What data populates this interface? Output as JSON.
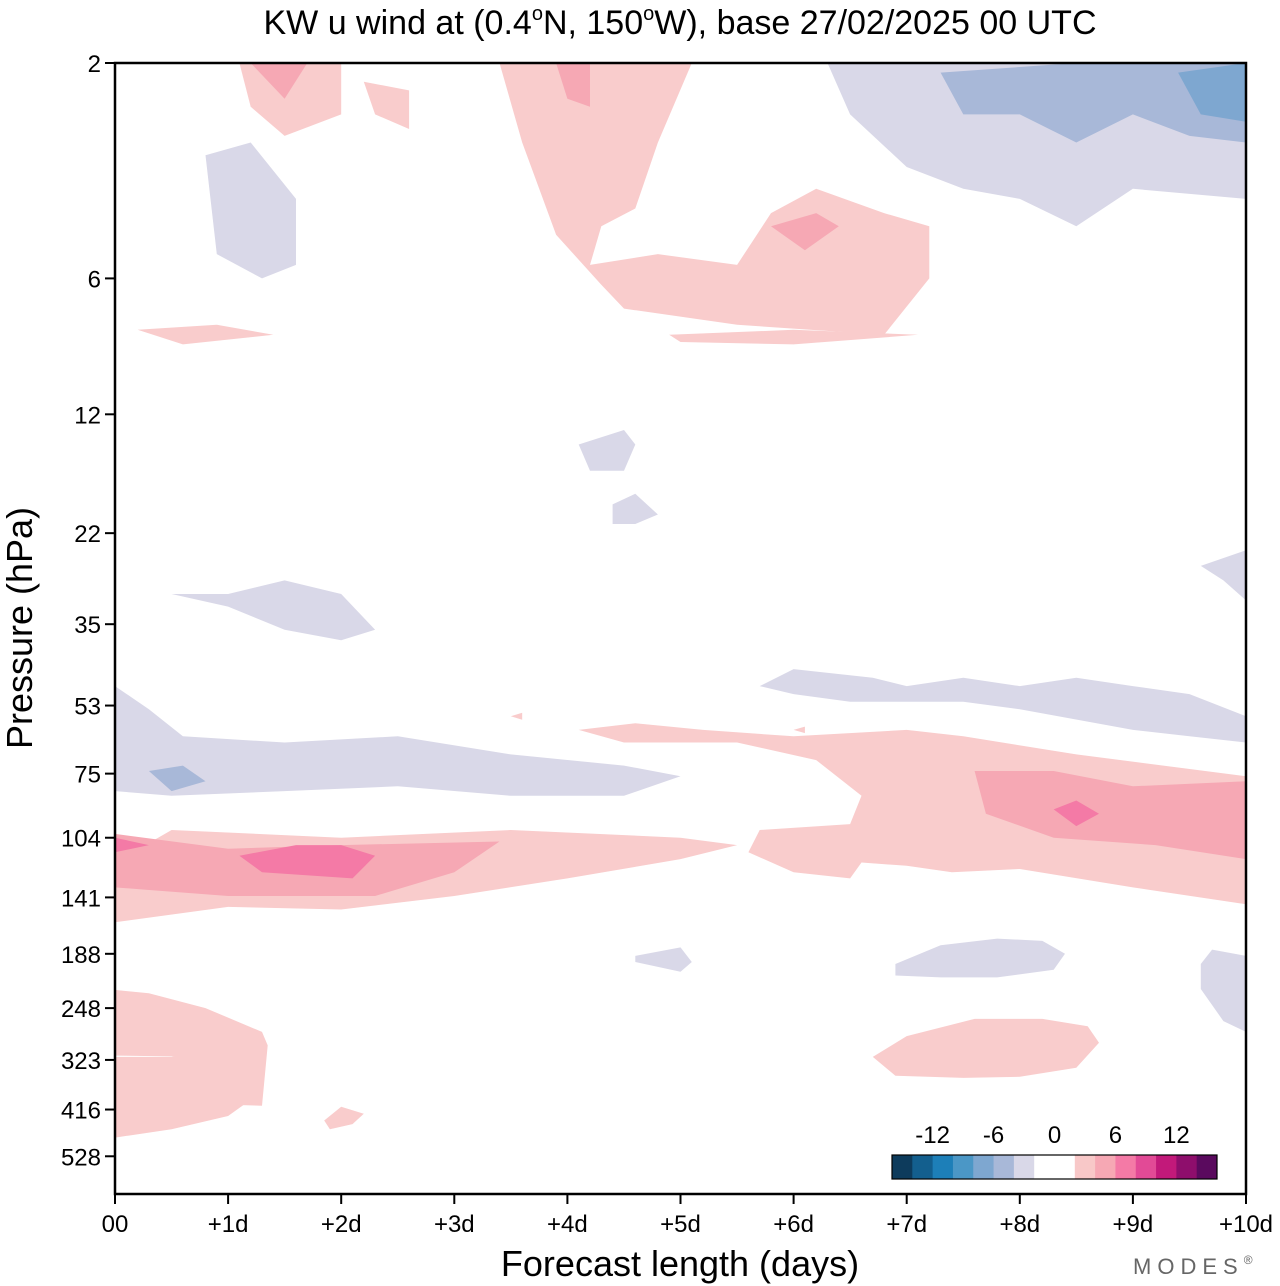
{
  "chart_data": {
    "type": "heatmap",
    "title": "KW u wind at (0.4°N, 150°W),  base 27/02/2025  00 UTC",
    "title_parts": {
      "prefix": "KW u wind at (0.4",
      "deg1": "o",
      "mid": "N, 150",
      "deg2": "o",
      "suffix": "W),  base 27/02/2025  00 UTC"
    },
    "xlabel": "Forecast length (days)",
    "ylabel": "Pressure (hPa)",
    "x_ticks": [
      "00",
      "+1d",
      "+2d",
      "+3d",
      "+4d",
      "+5d",
      "+6d",
      "+7d",
      "+8d",
      "+9d",
      "+10d"
    ],
    "x_range": [
      0,
      10
    ],
    "y_ticks": [
      "2",
      "6",
      "12",
      "22",
      "35",
      "53",
      "75",
      "104",
      "141",
      "188",
      "248",
      "323",
      "416",
      "528"
    ],
    "y_scale": "log",
    "y_range": [
      2,
      640
    ],
    "colorbar": {
      "tick_labels": [
        "-12",
        "-6",
        "0",
        "6",
        "12"
      ],
      "colors": [
        "#0d3b5c",
        "#135f8e",
        "#1d7fb8",
        "#4b97c6",
        "#7ea7d0",
        "#a8b8d8",
        "#d9d8e8",
        "#ffffff",
        "#ffffff",
        "#f8c8c8",
        "#f6a8b4",
        "#f47aa6",
        "#e24a96",
        "#c2197a",
        "#8e0e6c",
        "#5a0a5e"
      ]
    },
    "levels": {
      "neg_weak": "#d9d8e8",
      "neg_mid": "#a8b8d8",
      "neg_strong": "#7ea7d0",
      "pos_weak": "#f9cccc",
      "pos_mid": "#f6a8b4",
      "pos_strong": "#f47aa6"
    },
    "regions": [
      {
        "level": "pos_weak",
        "points": [
          [
            0,
            118
          ],
          [
            0.5,
            100
          ],
          [
            2,
            104
          ],
          [
            3.5,
            100
          ],
          [
            5,
            104
          ],
          [
            5.5,
            108
          ],
          [
            5,
            116
          ],
          [
            4,
            128
          ],
          [
            3,
            140
          ],
          [
            2,
            150
          ],
          [
            1,
            148
          ],
          [
            0,
            160
          ]
        ]
      },
      {
        "level": "pos_mid",
        "points": [
          [
            0,
            102
          ],
          [
            1,
            110
          ],
          [
            2,
            108
          ],
          [
            3.4,
            106
          ],
          [
            3,
            124
          ],
          [
            2.3,
            140
          ],
          [
            1,
            140
          ],
          [
            0,
            134
          ]
        ]
      },
      {
        "level": "pos_strong",
        "points": [
          [
            0,
            104
          ],
          [
            0.3,
            108
          ],
          [
            0,
            112
          ]
        ]
      },
      {
        "level": "pos_strong",
        "points": [
          [
            1.1,
            114
          ],
          [
            1.6,
            108
          ],
          [
            2.0,
            108
          ],
          [
            2.3,
            114
          ],
          [
            2.1,
            128
          ],
          [
            1.3,
            124
          ]
        ]
      },
      {
        "level": "pos_weak",
        "points": [
          [
            4.1,
            60
          ],
          [
            4.6,
            58
          ],
          [
            5.2,
            60
          ],
          [
            6,
            62
          ],
          [
            7,
            60
          ],
          [
            7.5,
            62
          ],
          [
            8.5,
            68
          ],
          [
            10,
            76
          ],
          [
            10,
            146
          ],
          [
            9,
            134
          ],
          [
            8,
            122
          ],
          [
            7.4,
            124
          ],
          [
            7,
            120
          ],
          [
            6.6,
            118
          ],
          [
            6.5,
            128
          ],
          [
            6,
            124
          ],
          [
            5.6,
            112
          ],
          [
            5.7,
            100
          ],
          [
            6.5,
            97
          ],
          [
            6.6,
            84
          ],
          [
            6.2,
            70
          ],
          [
            5.5,
            64
          ],
          [
            4.5,
            64
          ]
        ]
      },
      {
        "level": "pos_mid",
        "points": [
          [
            7.6,
            74
          ],
          [
            8.3,
            74
          ],
          [
            9,
            80
          ],
          [
            10,
            78
          ],
          [
            10,
            116
          ],
          [
            9.2,
            108
          ],
          [
            8.3,
            104
          ],
          [
            7.7,
            92
          ]
        ]
      },
      {
        "level": "pos_strong",
        "points": [
          [
            8.3,
            90
          ],
          [
            8.5,
            86
          ],
          [
            8.7,
            92
          ],
          [
            8.5,
            98
          ]
        ]
      },
      {
        "level": "neg_weak",
        "points": [
          [
            0,
            48
          ],
          [
            0.3,
            54
          ],
          [
            0.6,
            62
          ],
          [
            1.5,
            64
          ],
          [
            2.5,
            62
          ],
          [
            3.5,
            68
          ],
          [
            4.5,
            72
          ],
          [
            5,
            76
          ],
          [
            4.5,
            84
          ],
          [
            3.5,
            84
          ],
          [
            2.5,
            80
          ],
          [
            1.5,
            82
          ],
          [
            0.5,
            84
          ],
          [
            0,
            82
          ]
        ]
      },
      {
        "level": "neg_mid",
        "points": [
          [
            0.3,
            74
          ],
          [
            0.6,
            72
          ],
          [
            0.8,
            78
          ],
          [
            0.5,
            82
          ]
        ]
      },
      {
        "level": "neg_weak",
        "points": [
          [
            0.5,
            30
          ],
          [
            1,
            30
          ],
          [
            1.5,
            28
          ],
          [
            2,
            30
          ],
          [
            2.3,
            36
          ],
          [
            2,
            38
          ],
          [
            1.5,
            36
          ],
          [
            1,
            32
          ]
        ]
      },
      {
        "level": "neg_weak",
        "points": [
          [
            5.7,
            48
          ],
          [
            6,
            44
          ],
          [
            6.7,
            46
          ],
          [
            7,
            48
          ],
          [
            7.5,
            46
          ],
          [
            8,
            48
          ],
          [
            8.5,
            46
          ],
          [
            9,
            48
          ],
          [
            9.5,
            50
          ],
          [
            10,
            56
          ],
          [
            10,
            64
          ],
          [
            9.5,
            62
          ],
          [
            9,
            60
          ],
          [
            8,
            54
          ],
          [
            7.5,
            52
          ],
          [
            7,
            52
          ],
          [
            6.5,
            52
          ],
          [
            6,
            50
          ]
        ]
      },
      {
        "level": "neg_weak",
        "points": [
          [
            6.9,
            198
          ],
          [
            7.3,
            180
          ],
          [
            7.8,
            174
          ],
          [
            8.2,
            176
          ],
          [
            8.4,
            188
          ],
          [
            8.3,
            204
          ],
          [
            7.8,
            212
          ],
          [
            7.3,
            212
          ],
          [
            6.9,
            210
          ]
        ]
      },
      {
        "level": "neg_weak",
        "points": [
          [
            4.6,
            190
          ],
          [
            5,
            182
          ],
          [
            5.1,
            196
          ],
          [
            5,
            206
          ],
          [
            4.6,
            196
          ]
        ]
      },
      {
        "level": "neg_weak",
        "points": [
          [
            9.6,
            198
          ],
          [
            9.7,
            184
          ],
          [
            10,
            190
          ],
          [
            10,
            280
          ],
          [
            9.8,
            265
          ],
          [
            9.6,
            225
          ]
        ]
      },
      {
        "level": "neg_weak",
        "points": [
          [
            9.6,
            26
          ],
          [
            10,
            24
          ],
          [
            10,
            31
          ],
          [
            9.8,
            28
          ]
        ]
      },
      {
        "level": "neg_weak",
        "points": [
          [
            4.1,
            14
          ],
          [
            4.5,
            13
          ],
          [
            4.6,
            14
          ],
          [
            4.5,
            16
          ],
          [
            4.2,
            16
          ]
        ]
      },
      {
        "level": "neg_weak",
        "points": [
          [
            4.4,
            19
          ],
          [
            4.6,
            18
          ],
          [
            4.8,
            20
          ],
          [
            4.6,
            21
          ],
          [
            4.4,
            21
          ]
        ]
      },
      {
        "level": "neg_weak",
        "points": [
          [
            0.8,
            3.2
          ],
          [
            1.2,
            3.0
          ],
          [
            1.6,
            4.0
          ],
          [
            1.6,
            5.6
          ],
          [
            1.3,
            6.0
          ],
          [
            0.9,
            5.3
          ]
        ]
      },
      {
        "level": "neg_weak",
        "points": [
          [
            6.3,
            2
          ],
          [
            7.5,
            2
          ],
          [
            10,
            2
          ],
          [
            10,
            4.0
          ],
          [
            9,
            3.8
          ],
          [
            8.5,
            4.6
          ],
          [
            8,
            4.0
          ],
          [
            7.5,
            3.8
          ],
          [
            7,
            3.4
          ],
          [
            6.5,
            2.6
          ]
        ]
      },
      {
        "level": "neg_mid",
        "points": [
          [
            7.3,
            2.1
          ],
          [
            8.5,
            2.0
          ],
          [
            10,
            2.0
          ],
          [
            10,
            3.0
          ],
          [
            9.5,
            2.9
          ],
          [
            9,
            2.6
          ],
          [
            8.5,
            3.0
          ],
          [
            8,
            2.6
          ],
          [
            7.5,
            2.6
          ]
        ]
      },
      {
        "level": "neg_strong",
        "points": [
          [
            9.4,
            2.1
          ],
          [
            10,
            2.0
          ],
          [
            10,
            2.7
          ],
          [
            9.6,
            2.6
          ]
        ]
      },
      {
        "level": "pos_weak",
        "points": [
          [
            1.1,
            2
          ],
          [
            2.0,
            2
          ],
          [
            2.0,
            2.6
          ],
          [
            1.5,
            2.9
          ],
          [
            1.2,
            2.5
          ]
        ]
      },
      {
        "level": "pos_mid",
        "points": [
          [
            1.2,
            2.0
          ],
          [
            1.7,
            2.0
          ],
          [
            1.5,
            2.4
          ]
        ]
      },
      {
        "level": "pos_weak",
        "points": [
          [
            3.4,
            2
          ],
          [
            5.1,
            2
          ],
          [
            4.8,
            3.0
          ],
          [
            4.6,
            4.2
          ],
          [
            4.3,
            4.6
          ],
          [
            4.2,
            5.6
          ],
          [
            4.8,
            5.3
          ],
          [
            5.5,
            5.6
          ],
          [
            5.8,
            4.3
          ],
          [
            6.2,
            3.8
          ],
          [
            6.8,
            4.3
          ],
          [
            7.2,
            4.6
          ],
          [
            7.2,
            6.0
          ],
          [
            6.8,
            8.0
          ],
          [
            5.5,
            7.6
          ],
          [
            4.5,
            7.0
          ],
          [
            4.3,
            6.2
          ],
          [
            3.9,
            4.8
          ],
          [
            3.6,
            3.0
          ]
        ]
      },
      {
        "level": "pos_mid",
        "points": [
          [
            3.9,
            2.0
          ],
          [
            4.2,
            2.0
          ],
          [
            4.2,
            2.5
          ],
          [
            4.0,
            2.4
          ]
        ]
      },
      {
        "level": "pos_mid",
        "points": [
          [
            5.8,
            4.6
          ],
          [
            6.2,
            4.3
          ],
          [
            6.4,
            4.6
          ],
          [
            6.1,
            5.2
          ]
        ]
      },
      {
        "level": "pos_weak",
        "points": [
          [
            0.2,
            7.8
          ],
          [
            0.9,
            7.6
          ],
          [
            1.4,
            8.0
          ],
          [
            0.6,
            8.4
          ]
        ]
      },
      {
        "level": "pos_weak",
        "points": [
          [
            4.9,
            8.0
          ],
          [
            6,
            7.8
          ],
          [
            7.1,
            8.0
          ],
          [
            6,
            8.4
          ],
          [
            5,
            8.3
          ]
        ]
      },
      {
        "level": "pos_weak",
        "points": [
          [
            2.2,
            2.2
          ],
          [
            2.6,
            2.3
          ],
          [
            2.6,
            2.8
          ],
          [
            2.3,
            2.6
          ]
        ]
      },
      {
        "level": "pos_weak",
        "points": [
          [
            0,
            480
          ],
          [
            0.5,
            460
          ],
          [
            1,
            430
          ],
          [
            1.3,
            380
          ],
          [
            1.1,
            320
          ],
          [
            0.9,
            300
          ],
          [
            0.5,
            318
          ],
          [
            0,
            318
          ]
        ]
      },
      {
        "level": "pos_weak",
        "points": [
          [
            0,
            450
          ],
          [
            0.6,
            420
          ],
          [
            1,
            406
          ],
          [
            1.3,
            408
          ],
          [
            1.35,
            300
          ],
          [
            1.3,
            280
          ],
          [
            0.8,
            248
          ],
          [
            0.3,
            230
          ],
          [
            0,
            226
          ],
          [
            0,
            316
          ],
          [
            0.8,
            318
          ],
          [
            1.0,
            352
          ],
          [
            0.8,
            398
          ],
          [
            0,
            415
          ]
        ]
      },
      {
        "level": "pos_weak",
        "points": [
          [
            1.85,
            440
          ],
          [
            2.0,
            410
          ],
          [
            2.2,
            425
          ],
          [
            2.1,
            448
          ],
          [
            1.9,
            460
          ]
        ]
      },
      {
        "level": "pos_weak",
        "points": [
          [
            6.7,
            318
          ],
          [
            7.0,
            286
          ],
          [
            7.6,
            262
          ],
          [
            8.2,
            262
          ],
          [
            8.6,
            272
          ],
          [
            8.7,
            296
          ],
          [
            8.5,
            336
          ],
          [
            8.0,
            352
          ],
          [
            7.5,
            354
          ],
          [
            6.9,
            350
          ]
        ]
      },
      {
        "level": "pos_weak",
        "points": [
          [
            3.5,
            56
          ],
          [
            3.6,
            55
          ],
          [
            3.6,
            57
          ]
        ]
      },
      {
        "level": "pos_weak",
        "points": [
          [
            6,
            60
          ],
          [
            6.1,
            59
          ],
          [
            6.1,
            61
          ]
        ]
      }
    ]
  },
  "brand": "MODES",
  "brand_mark": "®"
}
